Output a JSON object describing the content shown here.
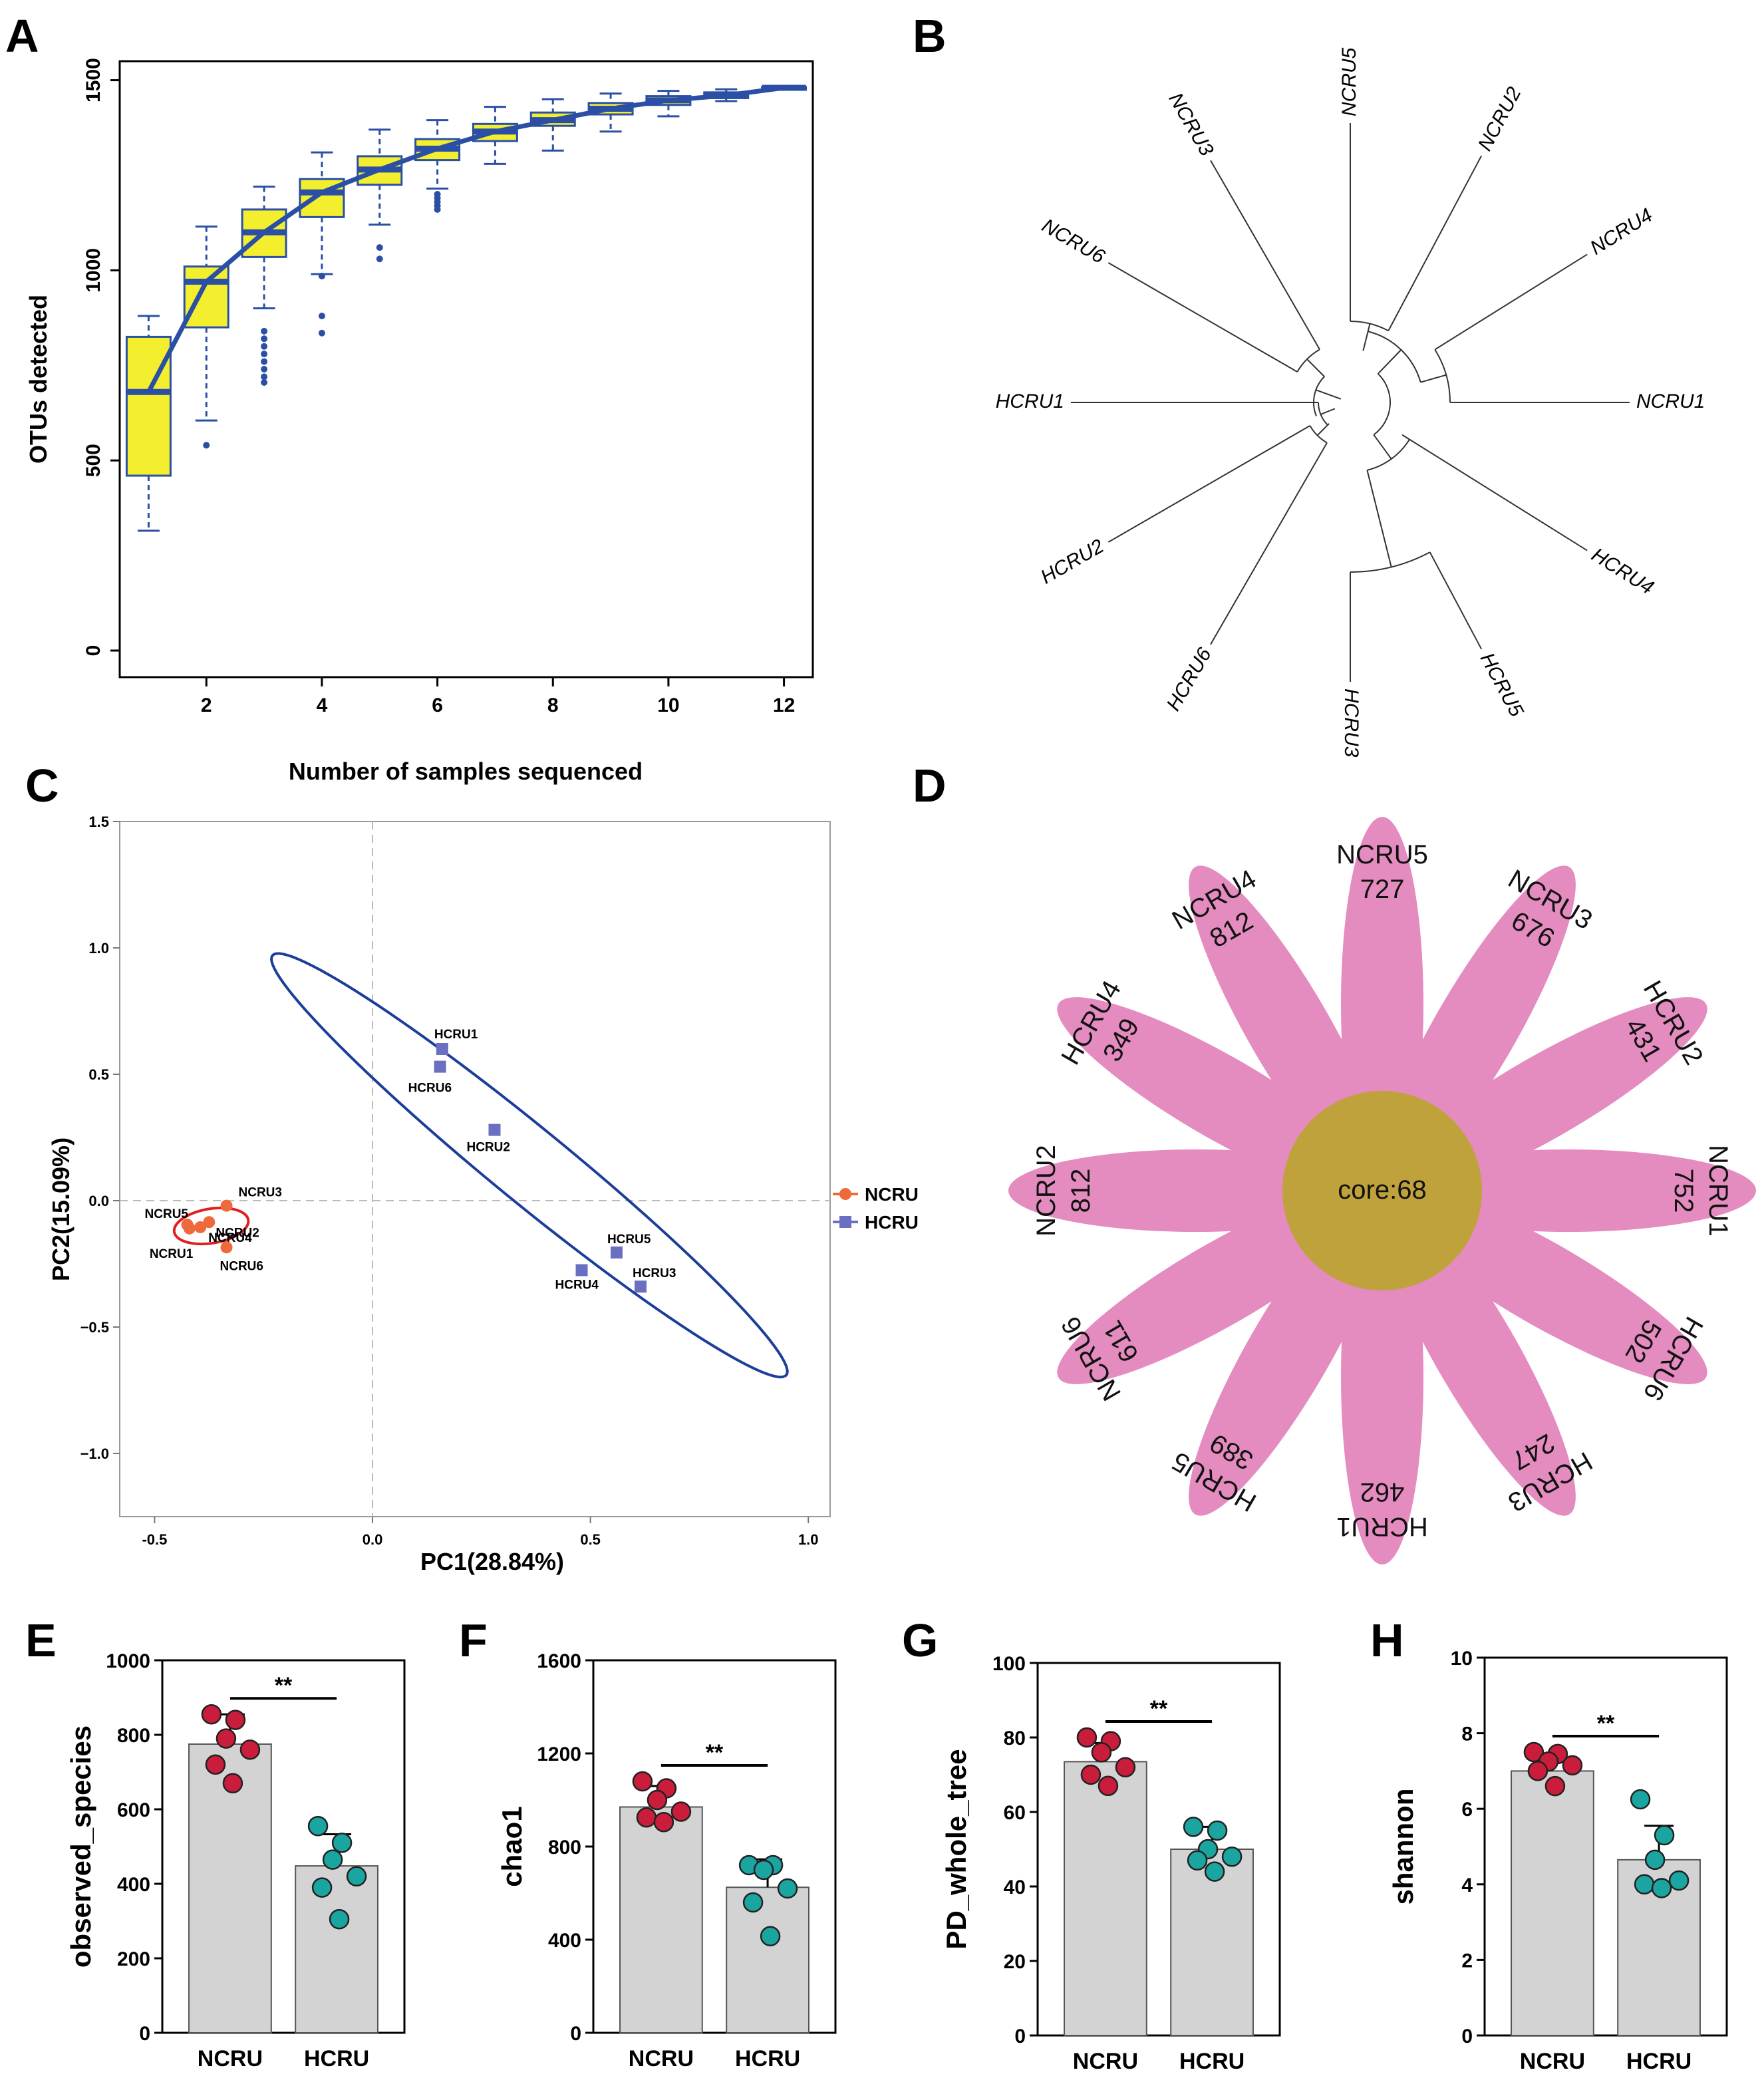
{
  "panels": {
    "a": "A",
    "b": "B",
    "c": "C",
    "d": "D",
    "e": "E",
    "f": "F",
    "g": "G",
    "h": "H"
  },
  "colors": {
    "box_fill": "#f3ee2e",
    "box_line": "#2a4fa5",
    "ncru": "#ee6a3c",
    "hcru": "#6a6fc2",
    "ellipse_ncru": "#e02020",
    "ellipse_hcru": "#1c3e9a",
    "petal": "#e48bbf",
    "core": "#c0a23c",
    "bar": "#d3d3d3",
    "dot_ncru": "#c91d3b",
    "dot_hcru": "#1ba5a0"
  },
  "chart_data": [
    {
      "id": "A",
      "type": "box",
      "xlabel": "Number of samples sequenced",
      "ylabel": "OTUs detected",
      "xlim": [
        0.5,
        12.5
      ],
      "ylim": [
        -70,
        1550
      ],
      "xticks": [
        2,
        4,
        6,
        8,
        10,
        12
      ],
      "yticks": [
        0,
        500,
        1000,
        1500
      ],
      "boxes": [
        {
          "x": 1,
          "q1": 460,
          "med": 680,
          "q3": 825,
          "lo": 315,
          "hi": 880,
          "out": []
        },
        {
          "x": 2,
          "q1": 850,
          "med": 970,
          "q3": 1010,
          "lo": 605,
          "hi": 1115,
          "out": [
            540
          ]
        },
        {
          "x": 3,
          "q1": 1035,
          "med": 1100,
          "q3": 1160,
          "lo": 900,
          "hi": 1220,
          "out": [
            840,
            820,
            800,
            780,
            760,
            740,
            720,
            705
          ]
        },
        {
          "x": 4,
          "q1": 1140,
          "med": 1205,
          "q3": 1240,
          "lo": 990,
          "hi": 1310,
          "out": [
            985,
            880,
            835
          ]
        },
        {
          "x": 5,
          "q1": 1225,
          "med": 1265,
          "q3": 1300,
          "lo": 1120,
          "hi": 1370,
          "out": [
            1060,
            1030
          ]
        },
        {
          "x": 6,
          "q1": 1290,
          "med": 1320,
          "q3": 1345,
          "lo": 1215,
          "hi": 1395,
          "out": [
            1200,
            1190,
            1180,
            1170,
            1160
          ]
        },
        {
          "x": 7,
          "q1": 1340,
          "med": 1365,
          "q3": 1385,
          "lo": 1280,
          "hi": 1430,
          "out": []
        },
        {
          "x": 8,
          "q1": 1380,
          "med": 1395,
          "q3": 1415,
          "lo": 1315,
          "hi": 1450,
          "out": []
        },
        {
          "x": 9,
          "q1": 1410,
          "med": 1425,
          "q3": 1440,
          "lo": 1365,
          "hi": 1465,
          "out": []
        },
        {
          "x": 10,
          "q1": 1435,
          "med": 1447,
          "q3": 1458,
          "lo": 1405,
          "hi": 1472,
          "out": []
        },
        {
          "x": 11,
          "q1": 1453,
          "med": 1460,
          "q3": 1468,
          "lo": 1445,
          "hi": 1476,
          "out": []
        },
        {
          "x": 12,
          "q1": 1478,
          "med": 1480,
          "q3": 1482,
          "lo": 1478,
          "hi": 1482,
          "out": []
        }
      ]
    },
    {
      "id": "B",
      "type": "tree",
      "leaves": [
        "NCRU5",
        "NCRU2",
        "NCRU4",
        "NCRU1",
        "HCRU4",
        "HCRU5",
        "HCRU3",
        "HCRU6",
        "HCRU2",
        "HCRU1",
        "NCRU6",
        "NCRU3"
      ]
    },
    {
      "id": "C",
      "type": "scatter",
      "xlabel": "PC1(28.84%)",
      "ylabel": "PC2(15.09%)",
      "xlim": [
        -0.58,
        1.05
      ],
      "ylim": [
        -1.25,
        1.5
      ],
      "xticks": [
        -0.5,
        0.0,
        0.5,
        1.0
      ],
      "yticks": [
        1.5,
        1.0,
        0.5,
        0.0,
        -0.5,
        -1.0
      ],
      "xtick_labels": [
        "-0.5",
        "0.0",
        "0.5",
        "1.0"
      ],
      "ytick_labels": [
        "1.5",
        "1.0",
        "0.5",
        "0.0",
        "−0.5",
        "−1.0"
      ],
      "legend": [
        "NCRU",
        "HCRU"
      ],
      "series": [
        {
          "name": "NCRU",
          "points": [
            {
              "label": "NCRU3",
              "x": -0.335,
              "y": -0.02
            },
            {
              "label": "NCRU2",
              "x": -0.375,
              "y": -0.085
            },
            {
              "label": "NCRU5",
              "x": -0.425,
              "y": -0.095
            },
            {
              "label": "NCRU4",
              "x": -0.395,
              "y": -0.105
            },
            {
              "label": "NCRU1",
              "x": -0.42,
              "y": -0.11
            },
            {
              "label": "NCRU6",
              "x": -0.335,
              "y": -0.185
            }
          ]
        },
        {
          "name": "HCRU",
          "points": [
            {
              "label": "HCRU1",
              "x": 0.16,
              "y": 0.6
            },
            {
              "label": "HCRU6",
              "x": 0.155,
              "y": 0.53
            },
            {
              "label": "HCRU2",
              "x": 0.28,
              "y": 0.28
            },
            {
              "label": "HCRU5",
              "x": 0.56,
              "y": -0.205
            },
            {
              "label": "HCRU4",
              "x": 0.48,
              "y": -0.275
            },
            {
              "label": "HCRU3",
              "x": 0.615,
              "y": -0.34
            }
          ]
        }
      ]
    },
    {
      "id": "D",
      "type": "flower",
      "core_label": "core:68",
      "petals": [
        {
          "name": "NCRU5",
          "value": "727"
        },
        {
          "name": "NCRU3",
          "value": "676"
        },
        {
          "name": "HCRU2",
          "value": "431"
        },
        {
          "name": "NCRU1",
          "value": "752"
        },
        {
          "name": "HCRU6",
          "value": "502"
        },
        {
          "name": "HCRU3",
          "value": "247"
        },
        {
          "name": "HCRU1",
          "value": "462"
        },
        {
          "name": "HCRU5",
          "value": "389"
        },
        {
          "name": "NCRU6",
          "value": "611"
        },
        {
          "name": "NCRU2",
          "value": "812"
        },
        {
          "name": "HCRU4",
          "value": "349"
        },
        {
          "name": "NCRU4",
          "value": "812"
        }
      ]
    },
    {
      "id": "E",
      "type": "bar",
      "ylabel": "observed_species",
      "ylim": [
        0,
        1000
      ],
      "yticks": [
        0,
        200,
        400,
        600,
        800,
        1000
      ],
      "categories": [
        "NCRU",
        "HCRU"
      ],
      "means": [
        775,
        448
      ],
      "sd": [
        80,
        85
      ],
      "sig": "**",
      "points": [
        [
          855,
          840,
          790,
          760,
          720,
          670
        ],
        [
          555,
          510,
          465,
          420,
          390,
          305
        ]
      ]
    },
    {
      "id": "F",
      "type": "bar",
      "ylabel": "chao1",
      "ylim": [
        0,
        1600
      ],
      "yticks": [
        0,
        400,
        800,
        1200,
        1600
      ],
      "categories": [
        "NCRU",
        "HCRU"
      ],
      "means": [
        970,
        625
      ],
      "sd": [
        90,
        120
      ],
      "sig": "**",
      "points": [
        [
          1080,
          1050,
          1000,
          950,
          925,
          905
        ],
        [
          720,
          720,
          700,
          620,
          560,
          415
        ]
      ]
    },
    {
      "id": "G",
      "type": "bar",
      "ylabel": "PD_whole_tree",
      "ylim": [
        0,
        100
      ],
      "yticks": [
        0,
        20,
        40,
        60,
        80,
        100
      ],
      "categories": [
        "NCRU",
        "HCRU"
      ],
      "means": [
        73.5,
        50
      ],
      "sd": [
        5,
        6
      ],
      "sig": "**",
      "points": [
        [
          80,
          79,
          76,
          72,
          70,
          67
        ],
        [
          56,
          55,
          50,
          48,
          47,
          44
        ]
      ]
    },
    {
      "id": "H",
      "type": "bar",
      "ylabel": "shannon",
      "ylim": [
        0,
        10
      ],
      "yticks": [
        0,
        2,
        4,
        6,
        8,
        10
      ],
      "categories": [
        "NCRU",
        "HCRU"
      ],
      "means": [
        7.0,
        4.65
      ],
      "sd": [
        0.45,
        0.9
      ],
      "sig": "**",
      "points": [
        [
          7.5,
          7.45,
          7.25,
          7.15,
          7.0,
          6.6
        ],
        [
          6.25,
          5.3,
          4.65,
          4.1,
          4.0,
          3.9
        ]
      ]
    }
  ]
}
